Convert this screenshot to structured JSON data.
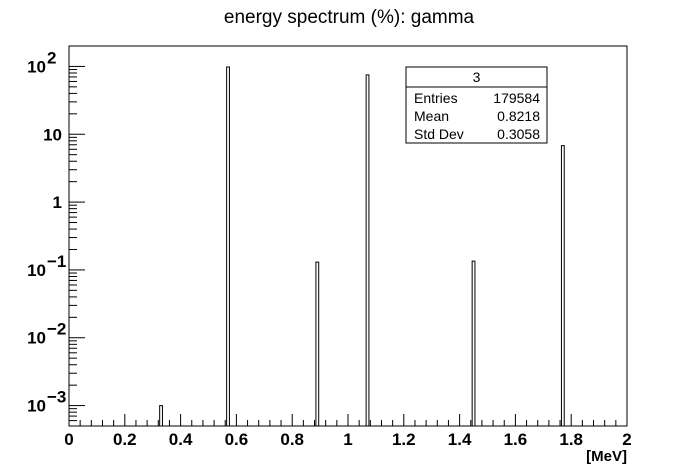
{
  "chart_data": {
    "type": "bar",
    "title": "energy spectrum (%): gamma",
    "xlabel": "[MeV]",
    "ylabel": "",
    "xlim": [
      0,
      2
    ],
    "ylim": [
      0.0005,
      200
    ],
    "log_y": true,
    "bin_width": 0.02,
    "grid": false,
    "x_ticks": [
      {
        "value": 0,
        "label": "0"
      },
      {
        "value": 0.2,
        "label": "0.2"
      },
      {
        "value": 0.4,
        "label": "0.4"
      },
      {
        "value": 0.6,
        "label": "0.6"
      },
      {
        "value": 0.8,
        "label": "0.8"
      },
      {
        "value": 1.0,
        "label": "1"
      },
      {
        "value": 1.2,
        "label": "1.2"
      },
      {
        "value": 1.4,
        "label": "1.4"
      },
      {
        "value": 1.6,
        "label": "1.6"
      },
      {
        "value": 1.8,
        "label": "1.8"
      },
      {
        "value": 2.0,
        "label": "2"
      }
    ],
    "y_ticks": [
      {
        "value": 0.001,
        "base": "10",
        "exp": "−3"
      },
      {
        "value": 0.01,
        "base": "10",
        "exp": "−2"
      },
      {
        "value": 0.1,
        "base": "10",
        "exp": "−1"
      },
      {
        "value": 1,
        "base": "1",
        "exp": ""
      },
      {
        "value": 10,
        "base": "10",
        "exp": ""
      },
      {
        "value": 100,
        "base": "10",
        "exp": "2"
      }
    ],
    "bins": [
      {
        "x": 0.33,
        "value": 0.001
      },
      {
        "x": 0.57,
        "value": 98
      },
      {
        "x": 0.89,
        "value": 0.13
      },
      {
        "x": 1.07,
        "value": 75
      },
      {
        "x": 1.45,
        "value": 0.135
      },
      {
        "x": 1.77,
        "value": 6.8
      }
    ],
    "stats_box": {
      "title": "3",
      "rows": [
        {
          "label": "Entries",
          "value": "179584"
        },
        {
          "label": "Mean",
          "value": "0.8218"
        },
        {
          "label": "Std Dev",
          "value": "0.3058"
        }
      ]
    }
  }
}
